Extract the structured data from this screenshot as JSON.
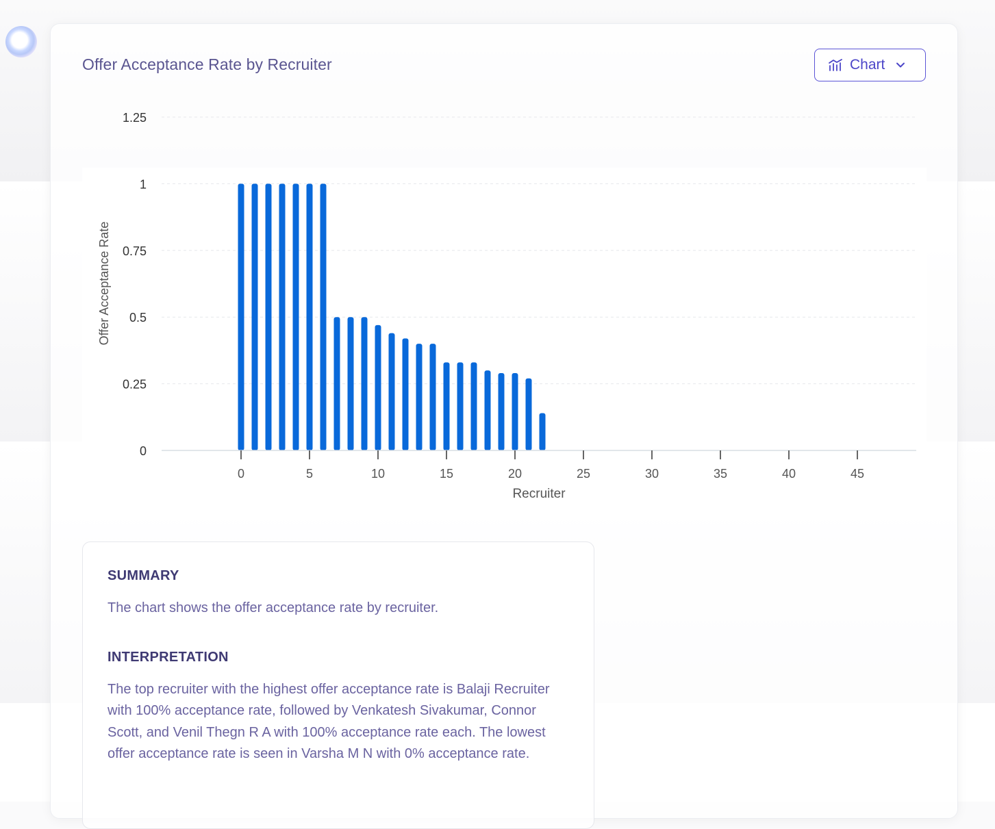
{
  "title": "Offer Acceptance Rate by Recruiter",
  "view_button": {
    "label": "Chart",
    "icon": "chart-icon",
    "chevron": "chevron-down-icon"
  },
  "chart_data": {
    "type": "bar",
    "title": "",
    "xlabel": "Recruiter",
    "ylabel": "Offer Acceptance Rate",
    "x": [
      0,
      1,
      2,
      3,
      4,
      5,
      6,
      7,
      8,
      9,
      10,
      11,
      12,
      13,
      14,
      15,
      16,
      17,
      18,
      19,
      20,
      21,
      22
    ],
    "values": [
      1,
      1,
      1,
      1,
      1,
      1,
      1,
      0.5,
      0.5,
      0.5,
      0.47,
      0.44,
      0.42,
      0.4,
      0.4,
      0.33,
      0.33,
      0.33,
      0.3,
      0.29,
      0.29,
      0.27,
      0.14
    ],
    "xlim": [
      -5.8,
      49.3
    ],
    "ylim": [
      0,
      1.25
    ],
    "xticks": [
      0,
      5,
      10,
      15,
      20,
      25,
      30,
      35,
      40,
      45
    ],
    "yticks": [
      0,
      0.25,
      0.5,
      0.75,
      1,
      1.25
    ],
    "ytick_labels": [
      "0",
      "0.25",
      "0.5",
      "0.75",
      "1",
      "1.25"
    ],
    "grid": true,
    "bar_color": "#0969da"
  },
  "summary": {
    "heading": "SUMMARY",
    "text": "The chart shows the offer acceptance rate by recruiter."
  },
  "interpretation": {
    "heading": "INTERPRETATION",
    "text": "The top recruiter with the highest offer acceptance rate is Balaji Recruiter with 100% acceptance rate, followed by Venkatesh Sivakumar, Connor Scott, and Venil Thegn R A with 100% acceptance rate each. The lowest offer acceptance rate is seen in Varsha M N with 0% acceptance rate."
  },
  "colors": {
    "accent": "#5b54d6",
    "title": "#5a5590",
    "body_text": "#6a63a0"
  }
}
